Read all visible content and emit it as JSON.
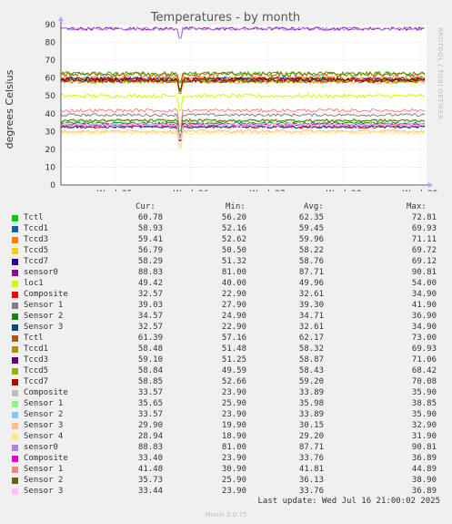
{
  "chart_data": {
    "type": "line",
    "title": "Temperatures - by month",
    "ylabel": "degrees Celsius",
    "side_label": "RRDTOOL / TOBI OETIKER",
    "ylim": [
      0,
      90
    ],
    "yticks": [
      0,
      10,
      20,
      30,
      40,
      50,
      60,
      70,
      80,
      90
    ],
    "xticks": [
      "Week 25",
      "Week 26",
      "Week 27",
      "Week 28",
      "Week 29"
    ],
    "grid": true,
    "series": [
      {
        "name": "Tctl",
        "color": "#00cc00",
        "cur": "60.78",
        "min": "56.20",
        "avg": "62.35",
        "max": "72.81"
      },
      {
        "name": "Tccd1",
        "color": "#0066b3",
        "cur": "58.93",
        "min": "52.16",
        "avg": "59.45",
        "max": "69.93"
      },
      {
        "name": "Tccd3",
        "color": "#ff8000",
        "cur": "59.41",
        "min": "52.62",
        "avg": "59.96",
        "max": "71.11"
      },
      {
        "name": "Tccd5",
        "color": "#ffcc00",
        "cur": "56.79",
        "min": "50.50",
        "avg": "58.22",
        "max": "69.72"
      },
      {
        "name": "Tccd7",
        "color": "#330099",
        "cur": "58.29",
        "min": "51.32",
        "avg": "58.76",
        "max": "69.12"
      },
      {
        "name": "sensor0",
        "color": "#990099",
        "cur": "88.83",
        "min": "81.00",
        "avg": "87.71",
        "max": "90.81"
      },
      {
        "name": "loc1",
        "color": "#ccff00",
        "cur": "49.42",
        "min": "40.00",
        "avg": "49.96",
        "max": "54.00"
      },
      {
        "name": "Composite",
        "color": "#ff0000",
        "cur": "32.57",
        "min": "22.90",
        "avg": "32.61",
        "max": "34.90"
      },
      {
        "name": "Sensor 1",
        "color": "#808080",
        "cur": "39.03",
        "min": "27.90",
        "avg": "39.30",
        "max": "41.90"
      },
      {
        "name": "Sensor 2",
        "color": "#008f00",
        "cur": "34.57",
        "min": "24.90",
        "avg": "34.71",
        "max": "36.90"
      },
      {
        "name": "Sensor 3",
        "color": "#00487d",
        "cur": "32.57",
        "min": "22.90",
        "avg": "32.61",
        "max": "34.90"
      },
      {
        "name": "Tctl",
        "color": "#b35a00",
        "cur": "61.39",
        "min": "57.16",
        "avg": "62.17",
        "max": "73.00"
      },
      {
        "name": "Tccd1",
        "color": "#b38f00",
        "cur": "58.48",
        "min": "51.48",
        "avg": "58.32",
        "max": "69.93"
      },
      {
        "name": "Tccd3",
        "color": "#6b006b",
        "cur": "59.10",
        "min": "51.25",
        "avg": "58.87",
        "max": "71.06"
      },
      {
        "name": "Tccd5",
        "color": "#8fb300",
        "cur": "58.84",
        "min": "49.59",
        "avg": "58.43",
        "max": "68.42"
      },
      {
        "name": "Tccd7",
        "color": "#b30000",
        "cur": "58.85",
        "min": "52.66",
        "avg": "59.20",
        "max": "70.08"
      },
      {
        "name": "Composite",
        "color": "#bebebe",
        "cur": "33.57",
        "min": "23.90",
        "avg": "33.89",
        "max": "35.90"
      },
      {
        "name": "Sensor 1",
        "color": "#80ff80",
        "cur": "35.65",
        "min": "25.90",
        "avg": "35.98",
        "max": "38.85"
      },
      {
        "name": "Sensor 2",
        "color": "#80c9ff",
        "cur": "33.57",
        "min": "23.90",
        "avg": "33.89",
        "max": "35.90"
      },
      {
        "name": "Sensor 3",
        "color": "#ffc080",
        "cur": "29.90",
        "min": "19.90",
        "avg": "30.15",
        "max": "32.90"
      },
      {
        "name": "Sensor 4",
        "color": "#ffe680",
        "cur": "28.94",
        "min": "18.90",
        "avg": "29.20",
        "max": "31.90"
      },
      {
        "name": "sensor0",
        "color": "#aa80ff",
        "cur": "88.83",
        "min": "81.00",
        "avg": "87.71",
        "max": "90.81"
      },
      {
        "name": "Composite",
        "color": "#ee00cc",
        "cur": "33.40",
        "min": "23.90",
        "avg": "33.76",
        "max": "36.89"
      },
      {
        "name": "Sensor 1",
        "color": "#ff8080",
        "cur": "41.48",
        "min": "30.90",
        "avg": "41.81",
        "max": "44.89"
      },
      {
        "name": "Sensor 2",
        "color": "#666600",
        "cur": "35.73",
        "min": "25.90",
        "avg": "36.13",
        "max": "38.90"
      },
      {
        "name": "Sensor 3",
        "color": "#ffbfff",
        "cur": "33.44",
        "min": "23.90",
        "avg": "33.76",
        "max": "36.89"
      }
    ]
  },
  "legend": {
    "cur": "Cur:",
    "min": "Min:",
    "avg": "Avg:",
    "max": "Max:"
  },
  "footer": {
    "last_update": "Last update: Wed Jul 16 21:00:02 2025",
    "version": "Munin 2.0.75"
  }
}
